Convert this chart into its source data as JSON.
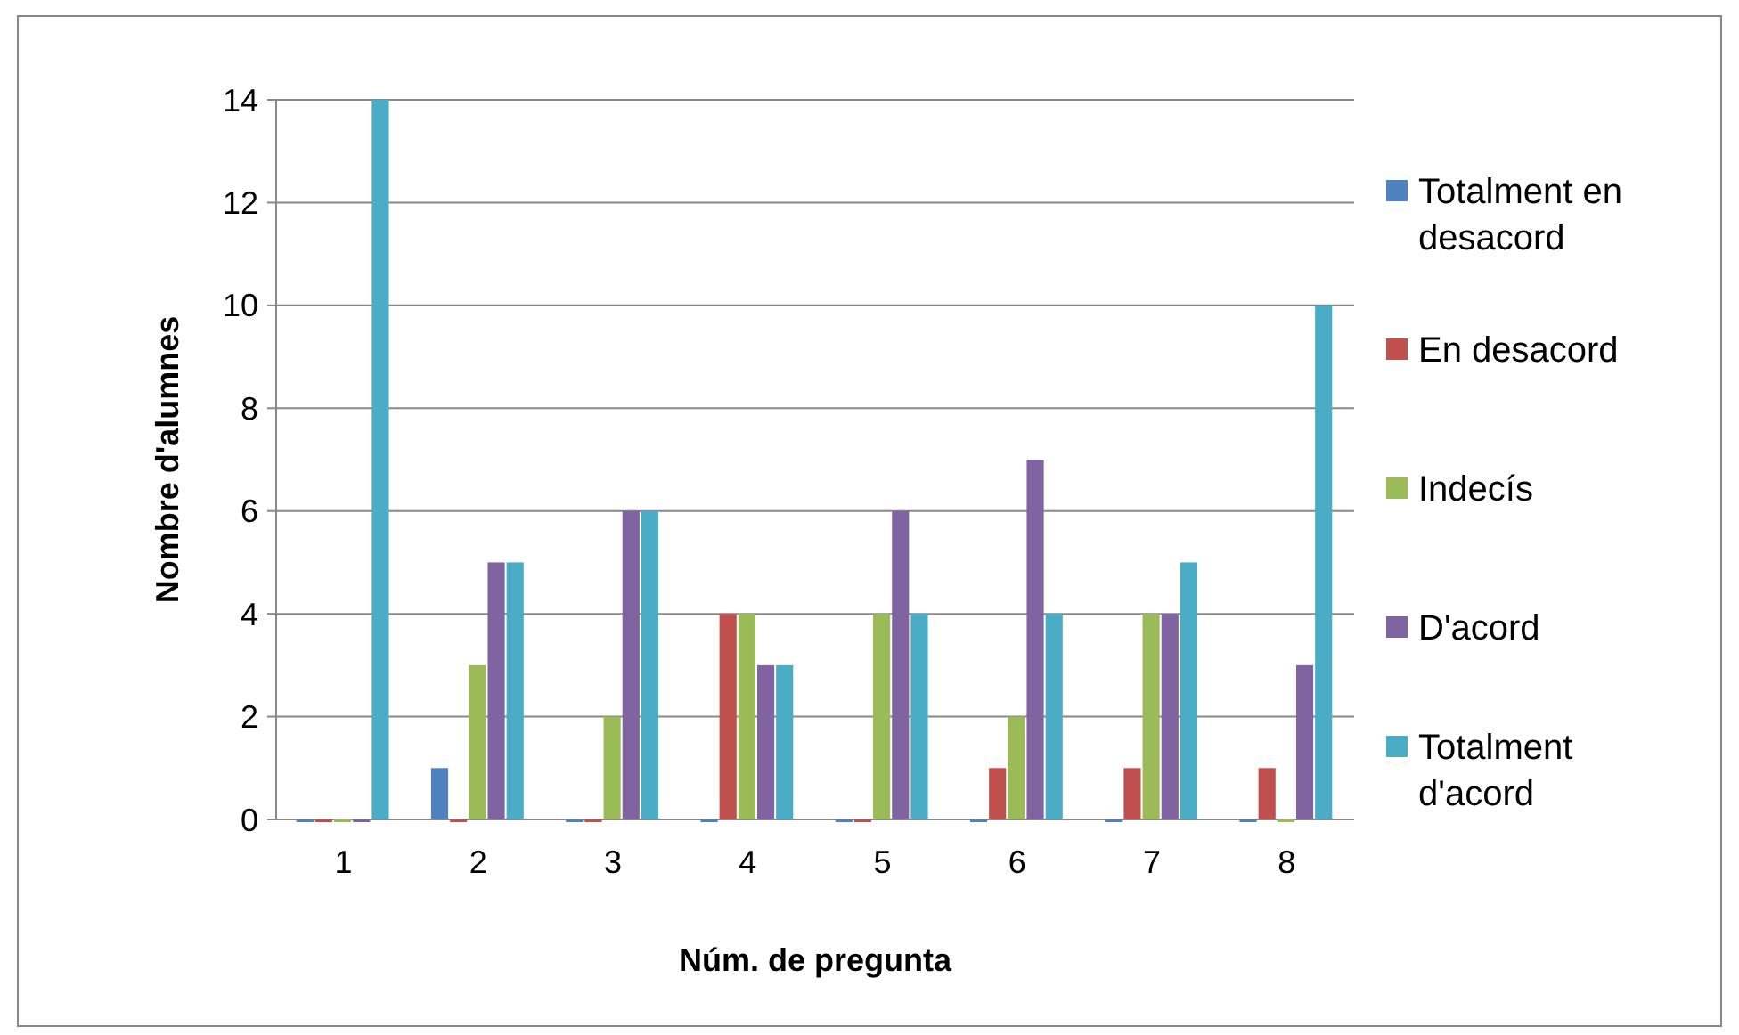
{
  "chart_data": {
    "type": "bar",
    "xlabel": "Núm. de pregunta",
    "ylabel": "Nombre d'alumnes",
    "categories": [
      "1",
      "2",
      "3",
      "4",
      "5",
      "6",
      "7",
      "8"
    ],
    "series": [
      {
        "name": "Totalment en desacord",
        "color": "#4f81bd",
        "values": [
          0,
          1,
          0,
          0,
          0,
          0,
          0,
          0
        ]
      },
      {
        "name": "En desacord",
        "color": "#c0504d",
        "values": [
          0,
          0,
          0,
          4,
          0,
          1,
          1,
          1
        ]
      },
      {
        "name": "Indecís",
        "color": "#9bbb59",
        "values": [
          0,
          3,
          2,
          4,
          4,
          2,
          4,
          0
        ]
      },
      {
        "name": "D'acord",
        "color": "#8064a2",
        "values": [
          0,
          5,
          6,
          3,
          6,
          7,
          4,
          3
        ]
      },
      {
        "name": "Totalment d'acord",
        "color": "#4bacc6",
        "values": [
          14,
          5,
          6,
          3,
          4,
          4,
          5,
          10
        ]
      }
    ],
    "ylim": [
      0,
      14
    ],
    "yticks": [
      0,
      2,
      4,
      6,
      8,
      10,
      12,
      14
    ],
    "grid": "y",
    "legend": "right"
  }
}
